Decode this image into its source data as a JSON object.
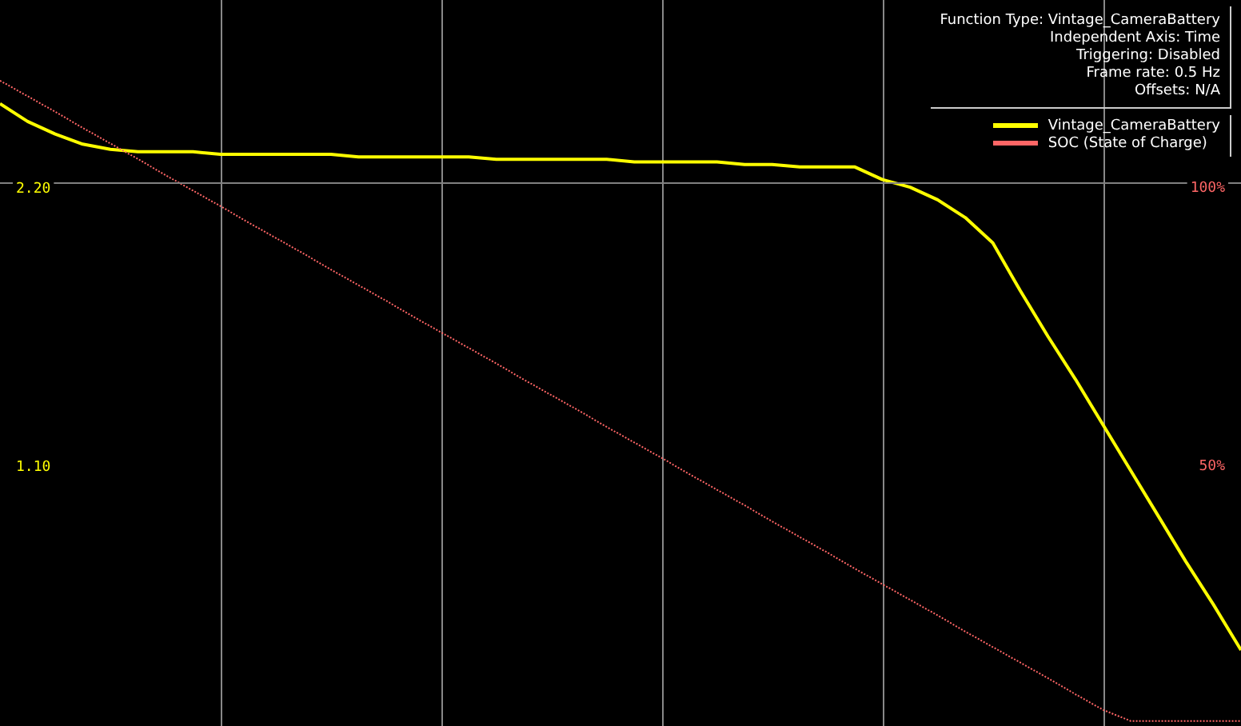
{
  "chart_data": {
    "type": "line",
    "annotations": [
      "Function Type: Vintage_CameraBattery",
      "Independent Axis: Time",
      "Triggering: Disabled",
      "Frame rate: 0.5 Hz",
      "Offsets: N/A"
    ],
    "categories": [
      null,
      null,
      null,
      null,
      null,
      null,
      null,
      null,
      null,
      null,
      null,
      null,
      null,
      null,
      null,
      null,
      null,
      null,
      null,
      null,
      null,
      null,
      null,
      null,
      null,
      null,
      null,
      null,
      null,
      null,
      null,
      null,
      null,
      null,
      null,
      null,
      null,
      null,
      null,
      null,
      null,
      null,
      null,
      null,
      null,
      null
    ],
    "series": [
      {
        "name": "Vintage_CameraBattery",
        "color": "#ffff00",
        "line_style": "solid",
        "values": [
          2.54,
          2.47,
          2.42,
          2.38,
          2.36,
          2.35,
          2.35,
          2.35,
          2.34,
          2.34,
          2.34,
          2.34,
          2.34,
          2.33,
          2.33,
          2.33,
          2.33,
          2.33,
          2.32,
          2.32,
          2.32,
          2.32,
          2.32,
          2.31,
          2.31,
          2.31,
          2.31,
          2.3,
          2.3,
          2.29,
          2.29,
          2.29,
          2.24,
          2.21,
          2.16,
          2.09,
          1.99,
          1.8,
          1.62,
          1.45,
          1.27,
          1.09,
          0.91,
          0.73,
          0.56,
          0.38
        ]
      },
      {
        "name": "SOC (State of Charge)",
        "color": "#ff6666",
        "line_style": "dotted",
        "axis": "y2",
        "values": [
          119.5,
          116.7,
          113.9,
          111,
          108.2,
          105.4,
          102.5,
          99.7,
          96.9,
          94,
          91.2,
          88.4,
          85.5,
          82.7,
          79.9,
          77,
          74.2,
          71.4,
          68.6,
          65.7,
          62.9,
          60.1,
          57.2,
          54.4,
          51.6,
          48.7,
          45.9,
          43.1,
          40.2,
          37.4,
          34.6,
          31.7,
          28.9,
          26.1,
          23.3,
          20.4,
          17.6,
          14.8,
          12,
          9.1,
          6.3,
          4.3,
          4.3,
          4.3,
          4.3,
          4.3
        ]
      }
    ],
    "ylim": [
      0.08,
      2.95
    ],
    "yticks": [
      {
        "value": 1.1,
        "label": "1.10"
      },
      {
        "value": 2.2,
        "label": "2.20"
      }
    ],
    "y2lim": [
      3.4,
      134
    ],
    "y2ticks": [
      {
        "value": 50,
        "label": "50%"
      },
      {
        "value": 100,
        "label": "100%"
      }
    ],
    "ref_lines": [
      {
        "axis": "y",
        "value": 2.23,
        "color": "#808080"
      }
    ],
    "grid": "x",
    "legend": "top right",
    "marker": "none"
  }
}
